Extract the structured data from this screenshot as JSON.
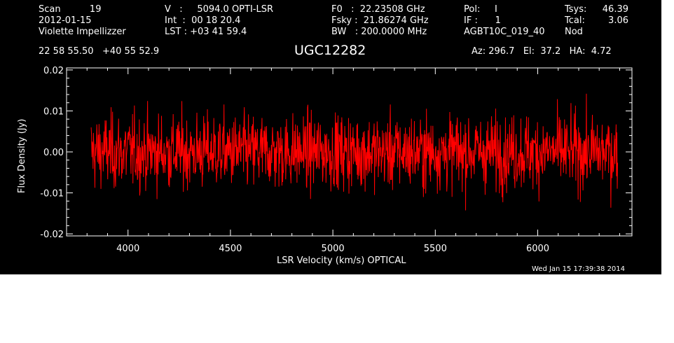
{
  "header": {
    "col1": [
      "Scan          19",
      "2012-01-15",
      "Violette Impellizzer"
    ],
    "col2": [
      "V   :     5094.0 OPTI-LSR",
      "Int  :  00 18 20.4",
      "LST : +03 41 59.4"
    ],
    "col3": [
      "F0   :  22.23508 GHz",
      "Fsky :  21.86274 GHz",
      "BW   : 200.0000 MHz"
    ],
    "col4": [
      "Pol:     I",
      "IF :      1",
      "AGBT10C_019_40"
    ],
    "col5": [
      "Tsys:",
      "Tcal:",
      "Nod"
    ],
    "col6": [
      "46.39",
      "3.06",
      ""
    ],
    "coords": "22 58 55.50   +40 55 52.9",
    "source": "UGC12282",
    "pointing": "Az: 296.7   El:  37.2   HA:  4.72",
    "timestamp": "Wed Jan 15 17:39:38 2014"
  },
  "chart_data": {
    "type": "line",
    "xlabel": "LSR Velocity (km/s) OPTICAL",
    "ylabel": "Flux Density (Jy)",
    "xlim": [
      3700,
      6460
    ],
    "ylim": [
      -0.0205,
      0.0205
    ],
    "x_ticks": [
      4000,
      4500,
      5000,
      5500,
      6000
    ],
    "x_tick_labels": [
      "4000",
      "4500",
      "5000",
      "5500",
      "6000"
    ],
    "y_ticks": [
      -0.02,
      -0.01,
      0.0,
      0.01,
      0.02
    ],
    "y_tick_labels": [
      "-0.02",
      "-0.01",
      "0.00",
      "0.01",
      "0.02"
    ],
    "series": [
      {
        "color": "#ff0000",
        "x_start": 3820,
        "x_end": 6390,
        "mean": 0.0,
        "rms": 0.0045,
        "n_points": 1400
      }
    ]
  }
}
